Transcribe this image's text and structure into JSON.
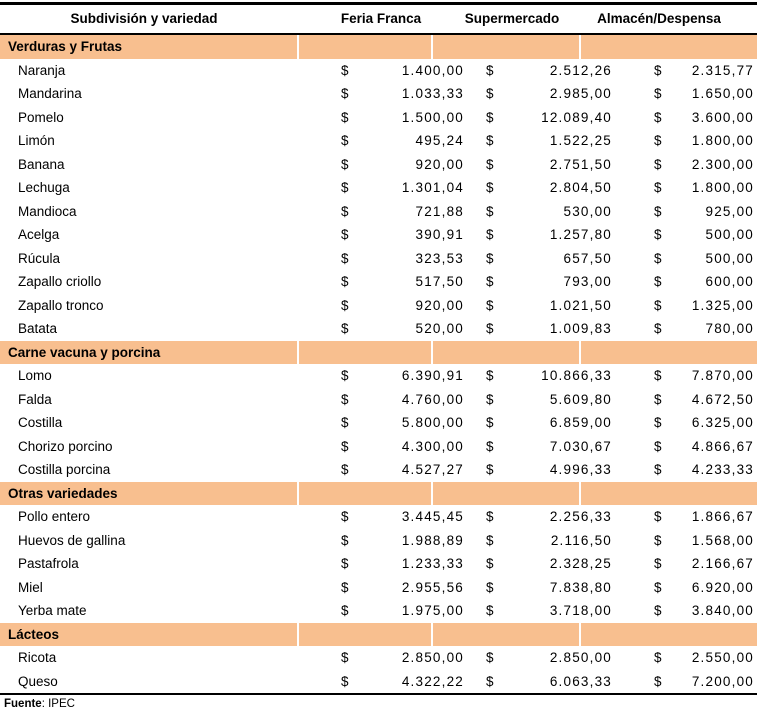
{
  "colors": {
    "section_band": "#F8BF8F",
    "border": "#000000",
    "background": "#FFFFFF"
  },
  "currency_symbol": "$",
  "table": {
    "headers": [
      "Subdivisión y variedad",
      "Feria Franca",
      "Supermercado",
      "Almacén/Despensa"
    ],
    "sections": [
      {
        "title": "Verduras y Frutas",
        "rows": [
          {
            "name": "Naranja",
            "feria_franca": "1.400,00",
            "supermercado": "2.512,26",
            "almacen_despensa": "2.315,77"
          },
          {
            "name": "Mandarina",
            "feria_franca": "1.033,33",
            "supermercado": "2.985,00",
            "almacen_despensa": "1.650,00"
          },
          {
            "name": "Pomelo",
            "feria_franca": "1.500,00",
            "supermercado": "12.089,40",
            "almacen_despensa": "3.600,00"
          },
          {
            "name": "Limón",
            "feria_franca": "495,24",
            "supermercado": "1.522,25",
            "almacen_despensa": "1.800,00"
          },
          {
            "name": "Banana",
            "feria_franca": "920,00",
            "supermercado": "2.751,50",
            "almacen_despensa": "2.300,00"
          },
          {
            "name": "Lechuga",
            "feria_franca": "1.301,04",
            "supermercado": "2.804,50",
            "almacen_despensa": "1.800,00"
          },
          {
            "name": "Mandioca",
            "feria_franca": "721,88",
            "supermercado": "530,00",
            "almacen_despensa": "925,00"
          },
          {
            "name": "Acelga",
            "feria_franca": "390,91",
            "supermercado": "1.257,80",
            "almacen_despensa": "500,00"
          },
          {
            "name": "Rúcula",
            "feria_franca": "323,53",
            "supermercado": "657,50",
            "almacen_despensa": "500,00"
          },
          {
            "name": "Zapallo criollo",
            "feria_franca": "517,50",
            "supermercado": "793,00",
            "almacen_despensa": "600,00"
          },
          {
            "name": "Zapallo tronco",
            "feria_franca": "920,00",
            "supermercado": "1.021,50",
            "almacen_despensa": "1.325,00"
          },
          {
            "name": "Batata",
            "feria_franca": "520,00",
            "supermercado": "1.009,83",
            "almacen_despensa": "780,00"
          }
        ]
      },
      {
        "title": "Carne vacuna y porcina",
        "rows": [
          {
            "name": "Lomo",
            "feria_franca": "6.390,91",
            "supermercado": "10.866,33",
            "almacen_despensa": "7.870,00"
          },
          {
            "name": "Falda",
            "feria_franca": "4.760,00",
            "supermercado": "5.609,80",
            "almacen_despensa": "4.672,50"
          },
          {
            "name": "Costilla",
            "feria_franca": "5.800,00",
            "supermercado": "6.859,00",
            "almacen_despensa": "6.325,00"
          },
          {
            "name": "Chorizo porcino",
            "feria_franca": "4.300,00",
            "supermercado": "7.030,67",
            "almacen_despensa": "4.866,67"
          },
          {
            "name": "Costilla porcina",
            "feria_franca": "4.527,27",
            "supermercado": "4.996,33",
            "almacen_despensa": "4.233,33"
          }
        ]
      },
      {
        "title": "Otras variedades",
        "rows": [
          {
            "name": "Pollo entero",
            "feria_franca": "3.445,45",
            "supermercado": "2.256,33",
            "almacen_despensa": "1.866,67"
          },
          {
            "name": "Huevos de gallina",
            "feria_franca": "1.988,89",
            "supermercado": "2.116,50",
            "almacen_despensa": "1.568,00"
          },
          {
            "name": "Pastafrola",
            "feria_franca": "1.233,33",
            "supermercado": "2.328,25",
            "almacen_despensa": "2.166,67"
          },
          {
            "name": "Miel",
            "feria_franca": "2.955,56",
            "supermercado": "7.838,80",
            "almacen_despensa": "6.920,00"
          },
          {
            "name": "Yerba mate",
            "feria_franca": "1.975,00",
            "supermercado": "3.718,00",
            "almacen_despensa": "3.840,00"
          }
        ]
      },
      {
        "title": "Lácteos",
        "rows": [
          {
            "name": "Ricota",
            "feria_franca": "2.850,00",
            "supermercado": "2.850,00",
            "almacen_despensa": "2.550,00"
          },
          {
            "name": "Queso",
            "feria_franca": "4.322,22",
            "supermercado": "6.063,33",
            "almacen_despensa": "7.200,00"
          }
        ]
      }
    ]
  },
  "footer": {
    "source_label": "Fuente",
    "source_rest": ": IPEC"
  }
}
